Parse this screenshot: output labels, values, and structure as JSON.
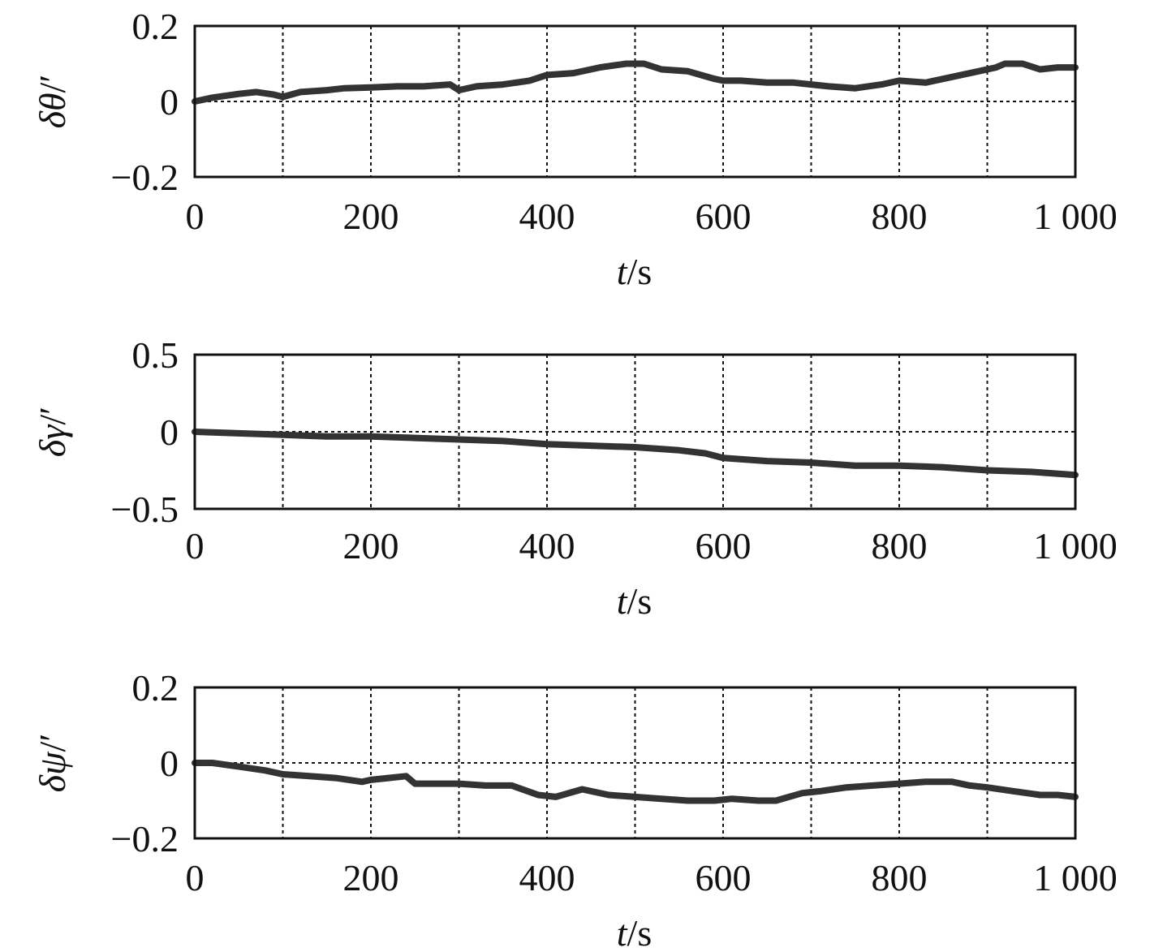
{
  "chart_data": [
    {
      "type": "line",
      "ylabel": "δθ/′",
      "xlabel": "t/s",
      "xlim": [
        0,
        1000
      ],
      "ylim": [
        -0.2,
        0.2
      ],
      "x_ticks": [
        0,
        200,
        400,
        600,
        800,
        1000
      ],
      "x_tick_labels": [
        "0",
        "200",
        "400",
        "600",
        "800",
        "1 000"
      ],
      "y_ticks": [
        0.2,
        0,
        -0.2
      ],
      "y_tick_labels": [
        "0.2",
        "0",
        "−0.2"
      ],
      "grid": true,
      "series": [
        {
          "x": [
            0,
            20,
            50,
            70,
            90,
            100,
            120,
            150,
            170,
            200,
            230,
            260,
            290,
            300,
            320,
            350,
            380,
            400,
            430,
            460,
            490,
            510,
            530,
            560,
            590,
            600,
            620,
            650,
            680,
            700,
            720,
            750,
            780,
            800,
            830,
            860,
            890,
            910,
            920,
            940,
            960,
            980,
            1000
          ],
          "y": [
            0.0,
            0.01,
            0.02,
            0.025,
            0.018,
            0.012,
            0.025,
            0.03,
            0.035,
            0.037,
            0.04,
            0.04,
            0.045,
            0.03,
            0.04,
            0.045,
            0.055,
            0.07,
            0.075,
            0.09,
            0.1,
            0.1,
            0.085,
            0.08,
            0.06,
            0.055,
            0.055,
            0.05,
            0.05,
            0.045,
            0.04,
            0.035,
            0.045,
            0.055,
            0.05,
            0.065,
            0.08,
            0.09,
            0.1,
            0.1,
            0.085,
            0.09,
            0.09
          ]
        }
      ]
    },
    {
      "type": "line",
      "ylabel": "δγ/′",
      "xlabel": "t/s",
      "xlim": [
        0,
        1000
      ],
      "ylim": [
        -0.5,
        0.5
      ],
      "x_ticks": [
        0,
        200,
        400,
        600,
        800,
        1000
      ],
      "x_tick_labels": [
        "0",
        "200",
        "400",
        "600",
        "800",
        "1 000"
      ],
      "y_ticks": [
        0.5,
        0,
        -0.5
      ],
      "y_tick_labels": [
        "0.5",
        "0",
        "−0.5"
      ],
      "grid": true,
      "series": [
        {
          "x": [
            0,
            50,
            100,
            150,
            200,
            250,
            300,
            350,
            400,
            450,
            500,
            550,
            580,
            600,
            650,
            700,
            750,
            800,
            850,
            900,
            950,
            1000
          ],
          "y": [
            0.0,
            -0.01,
            -0.02,
            -0.03,
            -0.03,
            -0.04,
            -0.05,
            -0.06,
            -0.08,
            -0.09,
            -0.1,
            -0.12,
            -0.14,
            -0.17,
            -0.19,
            -0.2,
            -0.22,
            -0.22,
            -0.23,
            -0.25,
            -0.26,
            -0.28
          ]
        }
      ]
    },
    {
      "type": "line",
      "ylabel": "δψ/′",
      "xlabel": "t/s",
      "xlim": [
        0,
        1000
      ],
      "ylim": [
        -0.2,
        0.2
      ],
      "x_ticks": [
        0,
        200,
        400,
        600,
        800,
        1000
      ],
      "x_tick_labels": [
        "0",
        "200",
        "400",
        "600",
        "800",
        "1 000"
      ],
      "y_ticks": [
        0.2,
        0,
        -0.2
      ],
      "y_tick_labels": [
        "0.2",
        "0",
        "−0.2"
      ],
      "grid": true,
      "series": [
        {
          "x": [
            0,
            20,
            50,
            80,
            100,
            130,
            160,
            190,
            200,
            220,
            240,
            250,
            280,
            300,
            330,
            360,
            390,
            410,
            440,
            470,
            500,
            530,
            560,
            590,
            610,
            640,
            660,
            690,
            710,
            740,
            770,
            800,
            830,
            860,
            880,
            900,
            930,
            960,
            980,
            1000
          ],
          "y": [
            0.0,
            0.0,
            -0.01,
            -0.02,
            -0.03,
            -0.035,
            -0.04,
            -0.05,
            -0.045,
            -0.04,
            -0.035,
            -0.055,
            -0.055,
            -0.055,
            -0.06,
            -0.06,
            -0.085,
            -0.09,
            -0.07,
            -0.085,
            -0.09,
            -0.095,
            -0.1,
            -0.1,
            -0.095,
            -0.1,
            -0.1,
            -0.08,
            -0.075,
            -0.065,
            -0.06,
            -0.055,
            -0.05,
            -0.05,
            -0.06,
            -0.065,
            -0.075,
            -0.085,
            -0.085,
            -0.09
          ]
        }
      ]
    }
  ]
}
